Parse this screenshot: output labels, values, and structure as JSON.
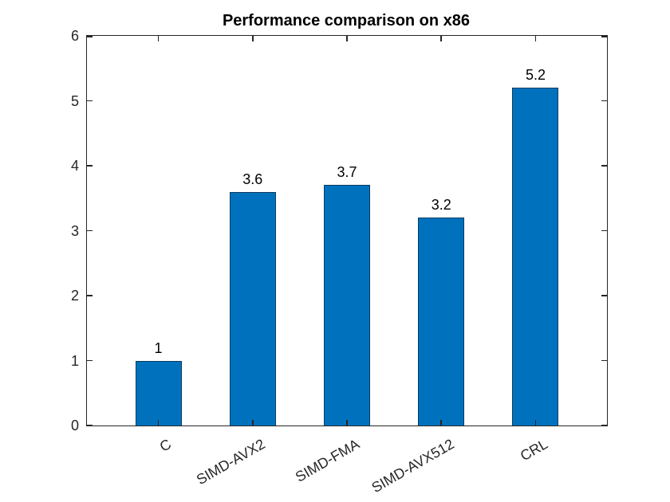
{
  "chart_data": {
    "type": "bar",
    "title": "Performance comparison on x86",
    "categories": [
      "C",
      "SIMD-AVX2",
      "SIMD-FMA",
      "SIMD-AVX512",
      "CRL"
    ],
    "values": [
      1,
      3.6,
      3.7,
      3.2,
      5.2
    ],
    "bar_labels": [
      "1",
      "3.6",
      "3.7",
      "3.2",
      "5.2"
    ],
    "xlabel": "",
    "ylabel": "",
    "ylim": [
      0,
      6
    ],
    "yticks": [
      0,
      1,
      2,
      3,
      4,
      5,
      6
    ],
    "xtick_angle_deg": 30,
    "grid": false,
    "legend_position": "none",
    "bar_color": "#0072BD",
    "bar_edge_color": "#0d3a5f",
    "axis_color": "#262626",
    "title_color": "#000000",
    "background_color": "#ffffff"
  }
}
